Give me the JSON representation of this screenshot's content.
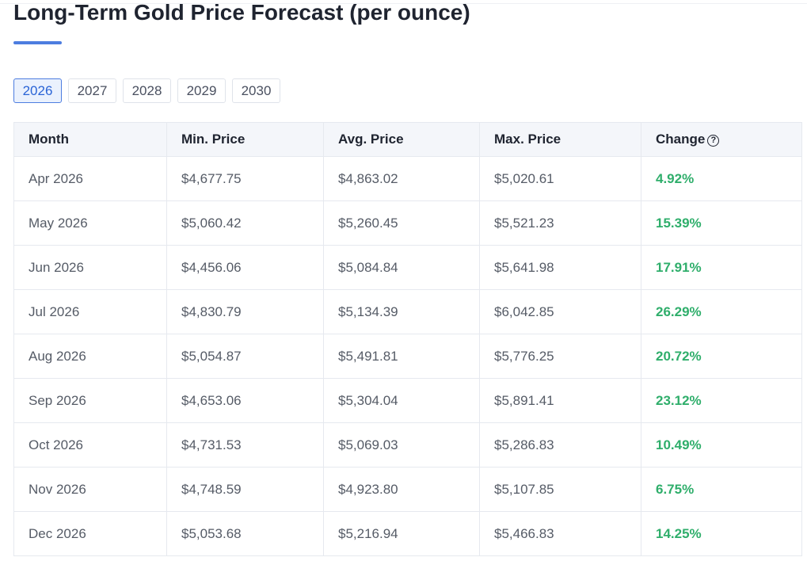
{
  "page": {
    "title": "Long-Term Gold Price Forecast (per ounce)"
  },
  "colors": {
    "accent": "#4d7de0",
    "positive_change": "#2fae6b"
  },
  "year_tabs": [
    {
      "label": "2026",
      "active": true
    },
    {
      "label": "2027",
      "active": false
    },
    {
      "label": "2028",
      "active": false
    },
    {
      "label": "2029",
      "active": false
    },
    {
      "label": "2030",
      "active": false
    }
  ],
  "table": {
    "headers": [
      "Month",
      "Min. Price",
      "Avg. Price",
      "Max. Price",
      "Change"
    ],
    "change_help_icon": "question-circle-icon",
    "rows": [
      [
        "Apr 2026",
        "$4,677.75",
        "$4,863.02",
        "$5,020.61",
        "4.92%"
      ],
      [
        "May 2026",
        "$5,060.42",
        "$5,260.45",
        "$5,521.23",
        "15.39%"
      ],
      [
        "Jun 2026",
        "$4,456.06",
        "$5,084.84",
        "$5,641.98",
        "17.91%"
      ],
      [
        "Jul 2026",
        "$4,830.79",
        "$5,134.39",
        "$6,042.85",
        "26.29%"
      ],
      [
        "Aug 2026",
        "$5,054.87",
        "$5,491.81",
        "$5,776.25",
        "20.72%"
      ],
      [
        "Sep 2026",
        "$4,653.06",
        "$5,304.04",
        "$5,891.41",
        "23.12%"
      ],
      [
        "Oct 2026",
        "$4,731.53",
        "$5,069.03",
        "$5,286.83",
        "10.49%"
      ],
      [
        "Nov 2026",
        "$4,748.59",
        "$4,923.80",
        "$5,107.85",
        "6.75%"
      ],
      [
        "Dec 2026",
        "$5,053.68",
        "$5,216.94",
        "$5,466.83",
        "14.25%"
      ]
    ]
  }
}
